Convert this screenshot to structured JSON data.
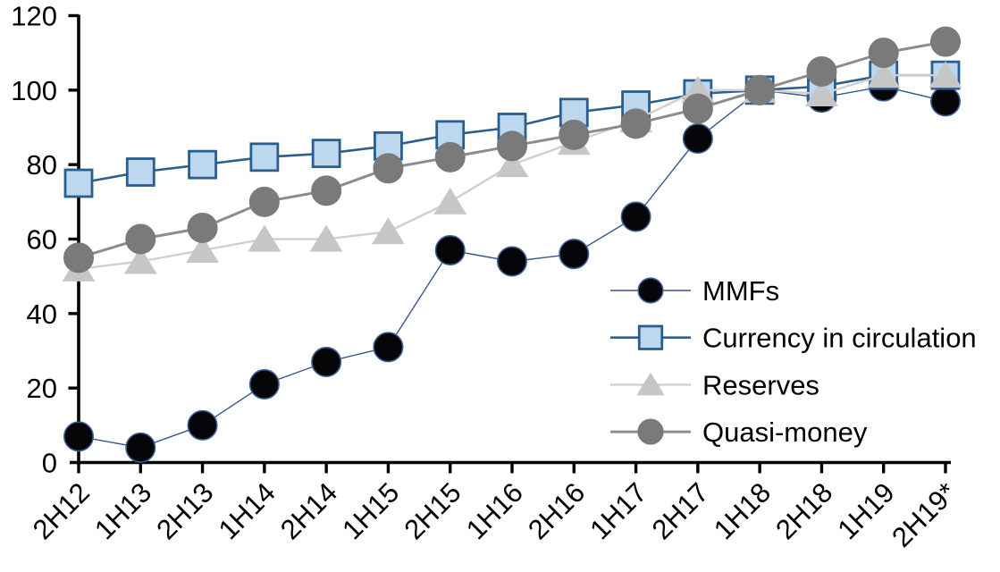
{
  "chart_data": {
    "type": "line",
    "title": "",
    "xlabel": "",
    "ylabel": "",
    "categories": [
      "2H12",
      "1H13",
      "2H13",
      "1H14",
      "2H14",
      "1H15",
      "2H15",
      "1H16",
      "2H16",
      "1H17",
      "2H17",
      "1H18",
      "2H18",
      "1H19",
      "2H19*"
    ],
    "series": [
      {
        "name": "MMFs",
        "marker": "circle",
        "marker_fill": "#060608",
        "marker_stroke": "#3a5e92",
        "line_color": "#35578c",
        "line_width": 1.4,
        "values": [
          7,
          4,
          10,
          21,
          27,
          31,
          57,
          54,
          56,
          66,
          87,
          100,
          98,
          101,
          97
        ]
      },
      {
        "name": "Currency in circulation",
        "marker": "square",
        "marker_fill": "#BDD7EE",
        "marker_stroke": "#2A5E8E",
        "line_color": "#2E5F8C",
        "line_width": 2.6,
        "values": [
          75,
          78,
          80,
          82,
          83,
          85,
          88,
          90,
          94,
          96,
          99,
          100,
          101,
          104,
          104
        ]
      },
      {
        "name": "Reserves",
        "marker": "triangle",
        "marker_fill": "#C6C6C6",
        "marker_stroke": "#C6C6C6",
        "line_color": "#CFCFCF",
        "line_width": 2.4,
        "values": [
          52,
          54,
          57,
          60,
          60,
          62,
          70,
          80,
          86,
          92,
          100,
          100,
          99,
          104,
          104
        ]
      },
      {
        "name": "Quasi-money",
        "marker": "circle",
        "marker_fill": "#7A7A7A",
        "marker_stroke": "#7A7A7A",
        "line_color": "#8C8C8C",
        "line_width": 3.0,
        "values": [
          55,
          60,
          63,
          70,
          73,
          79,
          82,
          85,
          88,
          91,
          95,
          100,
          105,
          110,
          113
        ]
      }
    ],
    "y_axis": {
      "ticks": [
        0,
        20,
        40,
        60,
        80,
        100,
        120
      ],
      "min": 0,
      "max": 120
    },
    "x_axis": {
      "tick_labels_rotated_degrees": 45
    },
    "ylim": [
      0,
      120
    ],
    "grid": false,
    "legend_position": "inside-right",
    "legend_entries": [
      "MMFs",
      "Currency in circulation",
      "Reserves",
      "Quasi-money"
    ],
    "axis_color": "#000000",
    "background_color": "#ffffff"
  }
}
